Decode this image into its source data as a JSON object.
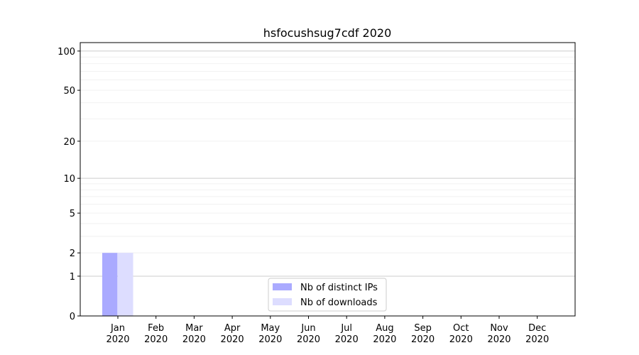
{
  "chart_data": {
    "type": "bar",
    "title": "hsfocushsug7cdf 2020",
    "xlabel": "",
    "ylabel": "",
    "y_scale": "log(1+y)",
    "ylim": [
      0,
      116
    ],
    "y_ticks": [
      0,
      1,
      2,
      5,
      10,
      20,
      50,
      100
    ],
    "categories": [
      "Jan\n2020",
      "Feb\n2020",
      "Mar\n2020",
      "Apr\n2020",
      "May\n2020",
      "Jun\n2020",
      "Jul\n2020",
      "Aug\n2020",
      "Sep\n2020",
      "Oct\n2020",
      "Nov\n2020",
      "Dec\n2020"
    ],
    "series": [
      {
        "name": "Nb of distinct IPs",
        "color": "#aaaaff",
        "values": [
          2,
          0,
          0,
          0,
          0,
          0,
          0,
          0,
          0,
          0,
          0,
          0
        ]
      },
      {
        "name": "Nb of downloads",
        "color": "#ddddff",
        "values": [
          2,
          0,
          0,
          0,
          0,
          0,
          0,
          0,
          0,
          0,
          0,
          0
        ]
      }
    ],
    "grid": true,
    "legend": "lower-center"
  }
}
